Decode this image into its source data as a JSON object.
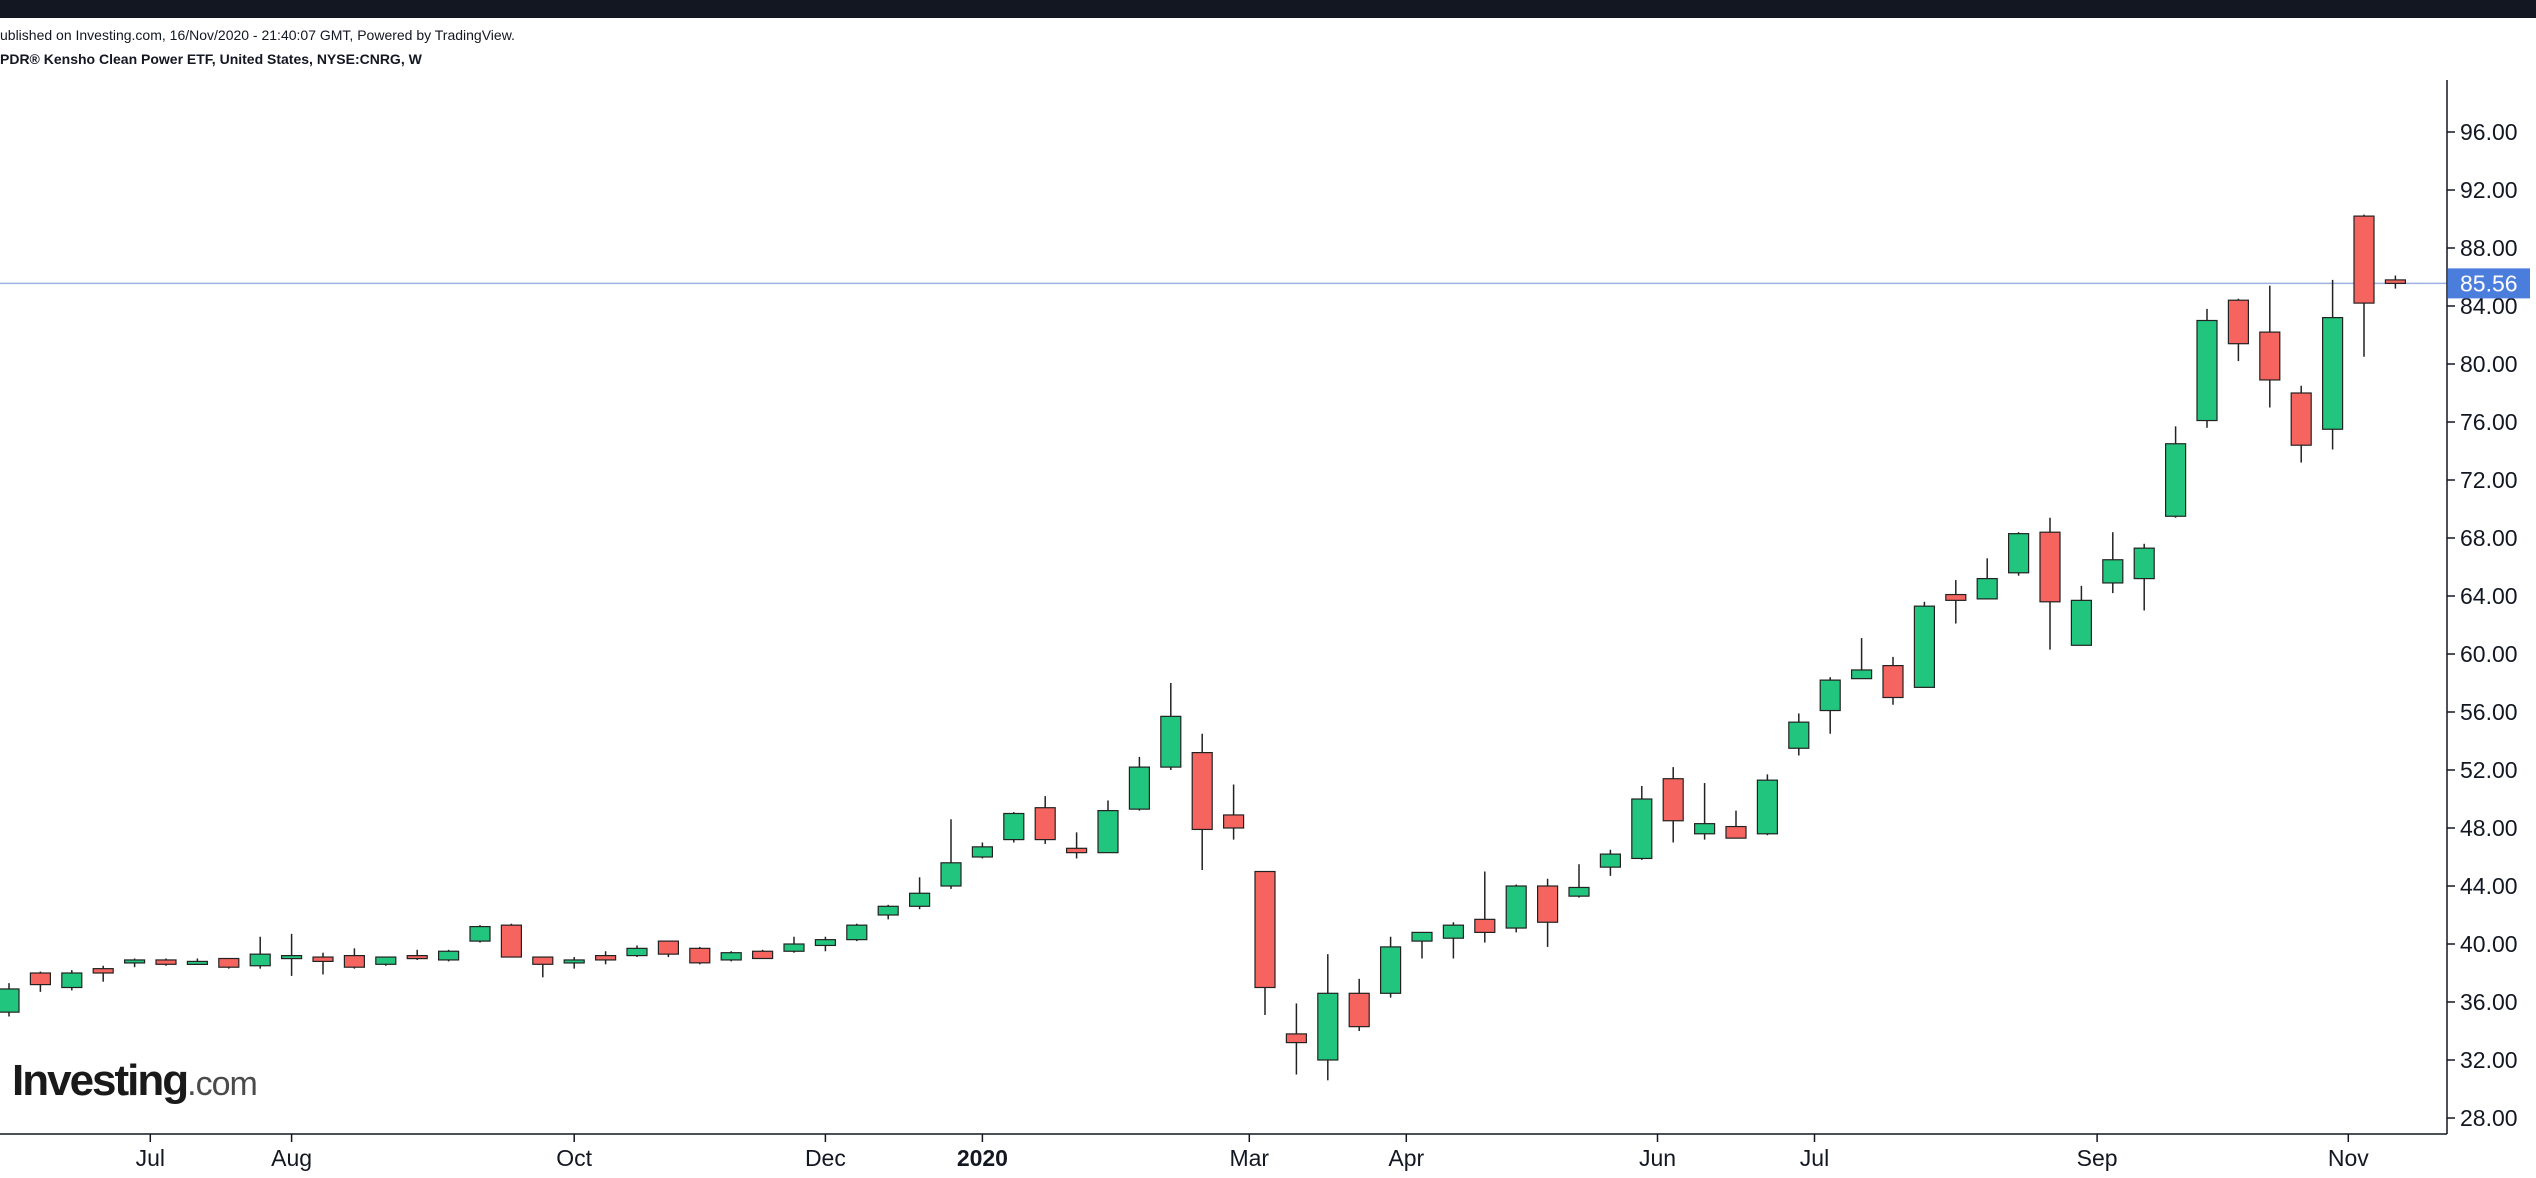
{
  "header": {
    "published": "ublished on Investing.com, 16/Nov/2020 - 21:40:07 GMT, Powered by TradingView.",
    "symbol": "PDR® Kensho Clean Power ETF, United States, NYSE:CNRG, W"
  },
  "logo": {
    "main": "Investing",
    "suffix": ".com"
  },
  "colors": {
    "up": "#22c57d",
    "down": "#f6645f",
    "wick": "#222222",
    "price_line": "#9db2e0",
    "price_label_bg": "#4a7ddc",
    "axis": "#131722"
  },
  "chart_data": {
    "type": "candlestick",
    "interval": "W",
    "ylim": [
      26.5,
      98
    ],
    "y_ticks": [
      "28.00",
      "32.00",
      "36.00",
      "40.00",
      "44.00",
      "48.00",
      "52.00",
      "56.00",
      "60.00",
      "64.00",
      "68.00",
      "72.00",
      "76.00",
      "80.00",
      "84.00",
      "88.00",
      "92.00",
      "96.00"
    ],
    "last_price": "85.56",
    "x_labels": [
      {
        "label": "Jul",
        "week": 4.5,
        "bold": false
      },
      {
        "label": "Aug",
        "week": 9.0,
        "bold": false
      },
      {
        "label": "Oct",
        "week": 18.0,
        "bold": false
      },
      {
        "label": "Dec",
        "week": 26.0,
        "bold": false
      },
      {
        "label": "2020",
        "week": 31.0,
        "bold": true
      },
      {
        "label": "Mar",
        "week": 39.5,
        "bold": false
      },
      {
        "label": "Apr",
        "week": 44.5,
        "bold": false
      },
      {
        "label": "Jun",
        "week": 52.5,
        "bold": false
      },
      {
        "label": "Jul",
        "week": 57.5,
        "bold": false
      },
      {
        "label": "Sep",
        "week": 66.5,
        "bold": false
      },
      {
        "label": "Nov",
        "week": 74.5,
        "bold": false
      }
    ],
    "candles": [
      {
        "o": 35.3,
        "h": 37.3,
        "l": 35.0,
        "c": 36.9
      },
      {
        "o": 38.0,
        "h": 38.1,
        "l": 36.7,
        "c": 37.2
      },
      {
        "o": 37.0,
        "h": 38.2,
        "l": 36.8,
        "c": 38.0
      },
      {
        "o": 38.3,
        "h": 38.5,
        "l": 37.4,
        "c": 38.0
      },
      {
        "o": 38.7,
        "h": 39.0,
        "l": 38.4,
        "c": 38.9
      },
      {
        "o": 38.9,
        "h": 39.0,
        "l": 38.5,
        "c": 38.6
      },
      {
        "o": 38.8,
        "h": 39.0,
        "l": 38.6,
        "c": 38.8
      },
      {
        "o": 39.0,
        "h": 39.0,
        "l": 38.3,
        "c": 38.4
      },
      {
        "o": 38.5,
        "h": 40.5,
        "l": 38.3,
        "c": 39.3
      },
      {
        "o": 39.1,
        "h": 40.7,
        "l": 37.8,
        "c": 39.2
      },
      {
        "o": 39.1,
        "h": 39.4,
        "l": 37.9,
        "c": 38.8
      },
      {
        "o": 39.2,
        "h": 39.7,
        "l": 38.3,
        "c": 38.4
      },
      {
        "o": 38.6,
        "h": 39.1,
        "l": 38.5,
        "c": 39.1
      },
      {
        "o": 39.2,
        "h": 39.6,
        "l": 38.9,
        "c": 39.0
      },
      {
        "o": 38.9,
        "h": 39.6,
        "l": 38.8,
        "c": 39.5
      },
      {
        "o": 40.2,
        "h": 41.3,
        "l": 40.1,
        "c": 41.2
      },
      {
        "o": 41.3,
        "h": 41.4,
        "l": 39.1,
        "c": 39.1
      },
      {
        "o": 39.1,
        "h": 39.1,
        "l": 37.7,
        "c": 38.6
      },
      {
        "o": 38.8,
        "h": 39.1,
        "l": 38.3,
        "c": 38.9
      },
      {
        "o": 39.2,
        "h": 39.5,
        "l": 38.6,
        "c": 38.9
      },
      {
        "o": 39.2,
        "h": 39.9,
        "l": 39.1,
        "c": 39.7
      },
      {
        "o": 40.2,
        "h": 40.2,
        "l": 39.1,
        "c": 39.3
      },
      {
        "o": 39.7,
        "h": 39.8,
        "l": 38.6,
        "c": 38.7
      },
      {
        "o": 38.9,
        "h": 39.5,
        "l": 38.8,
        "c": 39.4
      },
      {
        "o": 39.5,
        "h": 39.6,
        "l": 39.0,
        "c": 39.0
      },
      {
        "o": 39.5,
        "h": 40.5,
        "l": 39.4,
        "c": 40.0
      },
      {
        "o": 39.9,
        "h": 40.5,
        "l": 39.5,
        "c": 40.3
      },
      {
        "o": 40.3,
        "h": 41.4,
        "l": 40.2,
        "c": 41.3
      },
      {
        "o": 42.0,
        "h": 42.7,
        "l": 41.7,
        "c": 42.6
      },
      {
        "o": 42.6,
        "h": 44.6,
        "l": 42.4,
        "c": 43.5
      },
      {
        "o": 44.0,
        "h": 48.6,
        "l": 43.8,
        "c": 45.6
      },
      {
        "o": 46.0,
        "h": 47.0,
        "l": 45.9,
        "c": 46.7
      },
      {
        "o": 47.2,
        "h": 49.1,
        "l": 47.0,
        "c": 49.0
      },
      {
        "o": 49.4,
        "h": 50.2,
        "l": 46.9,
        "c": 47.2
      },
      {
        "o": 46.6,
        "h": 47.7,
        "l": 45.9,
        "c": 46.3
      },
      {
        "o": 46.3,
        "h": 49.9,
        "l": 46.3,
        "c": 49.2
      },
      {
        "o": 49.3,
        "h": 52.9,
        "l": 49.2,
        "c": 52.2
      },
      {
        "o": 52.2,
        "h": 58.0,
        "l": 52.0,
        "c": 55.7
      },
      {
        "o": 53.2,
        "h": 54.5,
        "l": 45.1,
        "c": 47.9
      },
      {
        "o": 48.9,
        "h": 51.0,
        "l": 47.2,
        "c": 48.0
      },
      {
        "o": 45.0,
        "h": 45.0,
        "l": 35.1,
        "c": 37.0
      },
      {
        "o": 33.8,
        "h": 35.9,
        "l": 31.0,
        "c": 33.2
      },
      {
        "o": 32.0,
        "h": 39.3,
        "l": 30.6,
        "c": 36.6
      },
      {
        "o": 36.6,
        "h": 37.6,
        "l": 34.0,
        "c": 34.3
      },
      {
        "o": 36.6,
        "h": 40.5,
        "l": 36.3,
        "c": 39.8
      },
      {
        "o": 40.2,
        "h": 40.8,
        "l": 39.0,
        "c": 40.8
      },
      {
        "o": 40.4,
        "h": 41.5,
        "l": 39.0,
        "c": 41.3
      },
      {
        "o": 41.7,
        "h": 45.0,
        "l": 40.1,
        "c": 40.8
      },
      {
        "o": 41.1,
        "h": 44.1,
        "l": 40.8,
        "c": 44.0
      },
      {
        "o": 44.0,
        "h": 44.5,
        "l": 39.8,
        "c": 41.5
      },
      {
        "o": 43.3,
        "h": 45.5,
        "l": 43.2,
        "c": 43.9
      },
      {
        "o": 45.3,
        "h": 46.5,
        "l": 44.7,
        "c": 46.2
      },
      {
        "o": 45.9,
        "h": 50.9,
        "l": 45.8,
        "c": 50.0
      },
      {
        "o": 51.4,
        "h": 52.2,
        "l": 47.0,
        "c": 48.5
      },
      {
        "o": 47.6,
        "h": 51.1,
        "l": 47.2,
        "c": 48.3
      },
      {
        "o": 48.1,
        "h": 49.2,
        "l": 47.3,
        "c": 47.3
      },
      {
        "o": 47.6,
        "h": 51.7,
        "l": 47.5,
        "c": 51.3
      },
      {
        "o": 53.5,
        "h": 55.9,
        "l": 53.0,
        "c": 55.3
      },
      {
        "o": 56.1,
        "h": 58.4,
        "l": 54.5,
        "c": 58.2
      },
      {
        "o": 58.3,
        "h": 61.1,
        "l": 58.3,
        "c": 58.9
      },
      {
        "o": 59.2,
        "h": 59.8,
        "l": 56.5,
        "c": 57.0
      },
      {
        "o": 57.7,
        "h": 63.6,
        "l": 57.7,
        "c": 63.3
      },
      {
        "o": 64.1,
        "h": 65.1,
        "l": 62.1,
        "c": 63.7
      },
      {
        "o": 63.8,
        "h": 66.6,
        "l": 63.8,
        "c": 65.2
      },
      {
        "o": 65.6,
        "h": 68.4,
        "l": 65.4,
        "c": 68.3
      },
      {
        "o": 68.4,
        "h": 69.4,
        "l": 60.3,
        "c": 63.6
      },
      {
        "o": 60.6,
        "h": 64.7,
        "l": 60.6,
        "c": 63.7
      },
      {
        "o": 64.9,
        "h": 68.4,
        "l": 64.2,
        "c": 66.5
      },
      {
        "o": 65.2,
        "h": 67.6,
        "l": 63.0,
        "c": 67.3
      },
      {
        "o": 69.5,
        "h": 75.7,
        "l": 69.4,
        "c": 74.5
      },
      {
        "o": 76.1,
        "h": 83.8,
        "l": 75.6,
        "c": 83.0
      },
      {
        "o": 84.4,
        "h": 84.5,
        "l": 80.2,
        "c": 81.4
      },
      {
        "o": 82.2,
        "h": 85.4,
        "l": 77.0,
        "c": 78.9
      },
      {
        "o": 78.0,
        "h": 78.5,
        "l": 73.2,
        "c": 74.4
      },
      {
        "o": 75.5,
        "h": 85.8,
        "l": 74.1,
        "c": 83.2
      },
      {
        "o": 90.2,
        "h": 90.3,
        "l": 80.5,
        "c": 84.2
      },
      {
        "o": 85.8,
        "h": 86.1,
        "l": 85.2,
        "c": 85.56
      }
    ]
  }
}
